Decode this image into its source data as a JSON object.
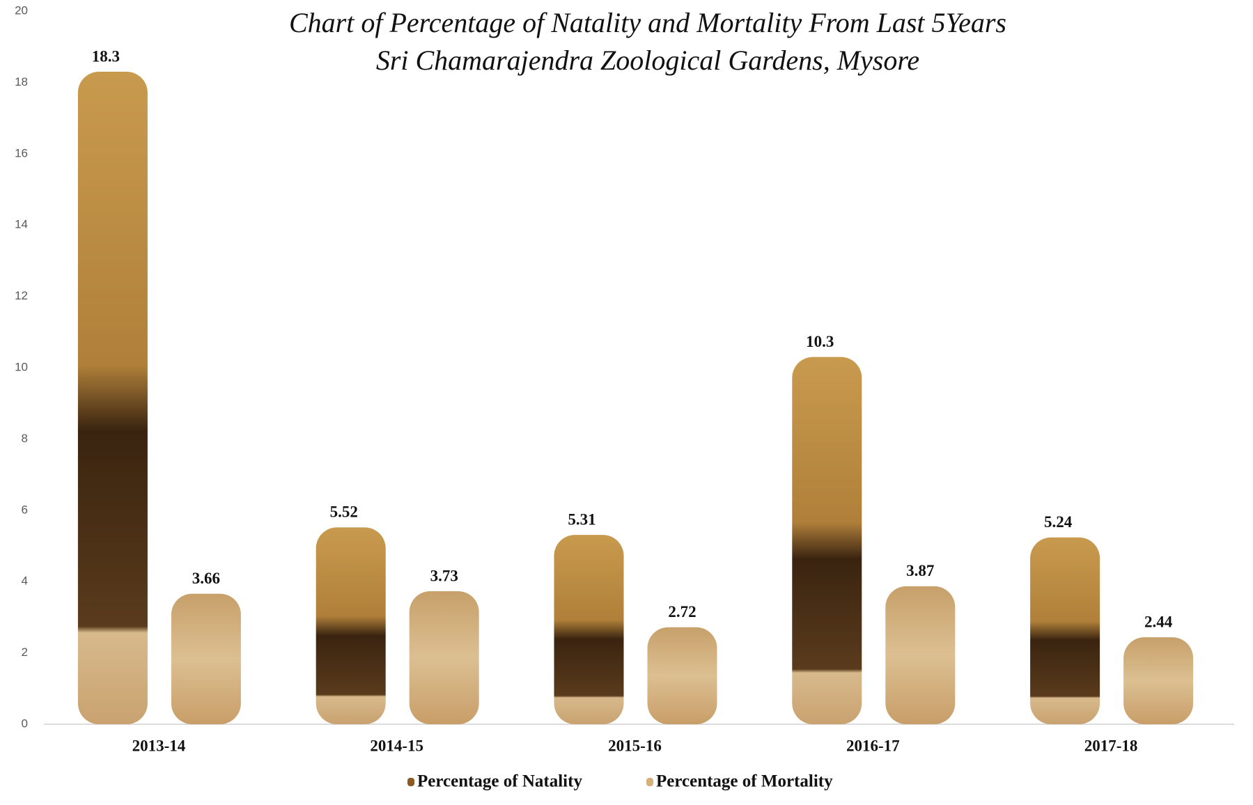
{
  "chart_data": {
    "type": "bar",
    "title": "Chart of Percentage of Natality and Mortality From Last 5Years",
    "subtitle": "Sri Chamarajendra Zoological Gardens, Mysore",
    "categories": [
      "2013-14",
      "2014-15",
      "2015-16",
      "2016-17",
      "2017-18"
    ],
    "series": [
      {
        "name": "Percentage of Natality",
        "color": "#8a5a22",
        "values": [
          18.3,
          5.52,
          5.31,
          10.3,
          5.24
        ]
      },
      {
        "name": "Percentage of Mortality",
        "color": "#d6b07a",
        "values": [
          3.66,
          3.73,
          2.72,
          3.87,
          2.44
        ]
      }
    ],
    "ylim": [
      0,
      20
    ],
    "yticks": [
      0,
      2,
      4,
      6,
      8,
      10,
      12,
      14,
      16,
      18,
      20
    ],
    "grid": false,
    "legend": "bottom"
  }
}
